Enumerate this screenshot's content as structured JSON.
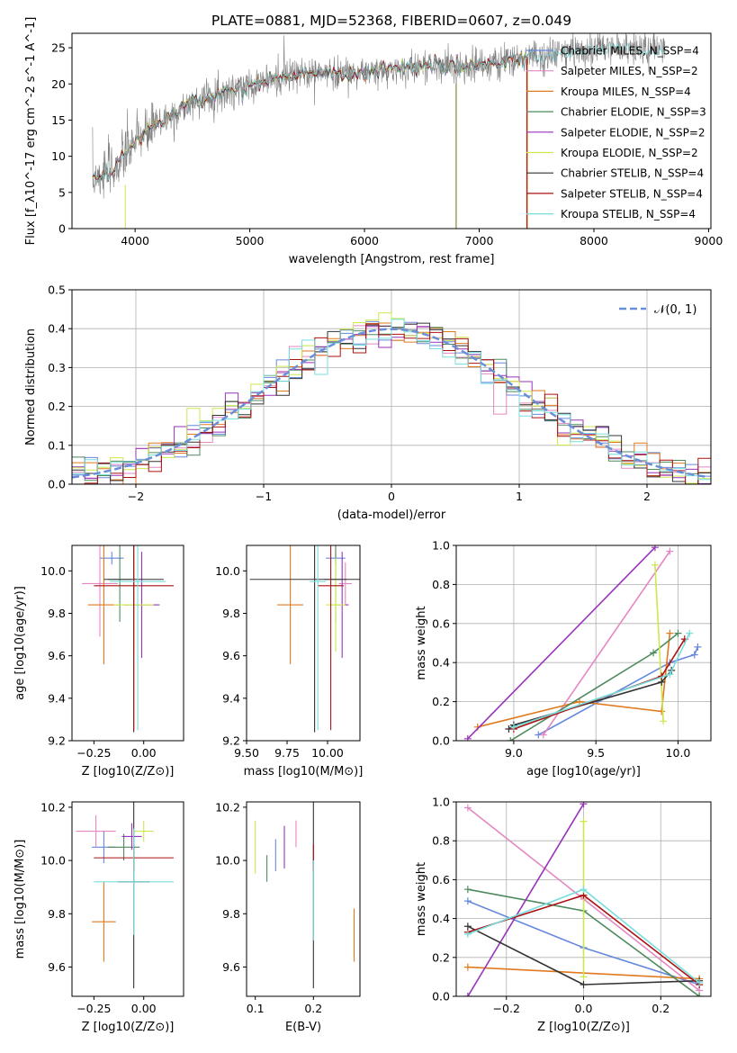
{
  "chart_data": [
    {
      "type": "line",
      "title": "PLATE=0881, MJD=52368, FIBERID=0607, z=0.049",
      "xlabel": "wavelength [Angstrom, rest frame]",
      "ylabel": "Flux [f_λ10^-17 erg cm^-2 s^-1 A^-1]",
      "xlim": [
        3450,
        9020
      ],
      "ylim": [
        0,
        27
      ],
      "xticks": [
        "4000",
        "5000",
        "6000",
        "7000",
        "8000",
        "9000"
      ],
      "yticks": [
        "0",
        "5",
        "10",
        "15",
        "20",
        "25"
      ],
      "legend_placement": "top-right",
      "legend": [
        {
          "label": "Chabrier MILES, N_SSP=4",
          "color": "#6688dd"
        },
        {
          "label": "Salpeter MILES, N_SSP=2",
          "color": "#e587c2"
        },
        {
          "label": "Kroupa MILES, N_SSP=4",
          "color": "#e07a1f"
        },
        {
          "label": "Chabrier ELODIE, N_SSP=3",
          "color": "#4e8a5e"
        },
        {
          "label": "Salpeter ELODIE, N_SSP=2",
          "color": "#9933bb"
        },
        {
          "label": "Kroupa ELODIE, N_SSP=2",
          "color": "#cce84d"
        },
        {
          "label": "Chabrier STELIB, N_SSP=4",
          "color": "#333333"
        },
        {
          "label": "Salpeter STELIB, N_SSP=4",
          "color": "#aa1111"
        },
        {
          "label": "Kroupa STELIB, N_SSP=4",
          "color": "#77dddd"
        }
      ],
      "data_color": "#808080",
      "continuum_x": [
        3630,
        3800,
        4000,
        4200,
        4500,
        5000,
        5500,
        6000,
        6500,
        7000,
        7400,
        7800,
        8200,
        8600
      ],
      "continuum_y": [
        7,
        8,
        12,
        14.5,
        17.5,
        20,
        21.5,
        21.5,
        22.5,
        22.5,
        23.5,
        24.5,
        25,
        24.5
      ]
    },
    {
      "type": "line",
      "xlabel": "(data-model)/error",
      "ylabel": "Normed distribution",
      "xlim": [
        -2.5,
        2.5
      ],
      "ylim": [
        0,
        0.5
      ],
      "xticks": [
        "−2",
        "−1",
        "0",
        "1",
        "2"
      ],
      "yticks": [
        "0.0",
        "0.1",
        "0.2",
        "0.3",
        "0.4",
        "0.5"
      ],
      "grid": true,
      "legend_placement": "top-right",
      "legend": [
        {
          "label": "𝒩(0, 1)",
          "color": "#6a8fd8",
          "style": "dashed"
        }
      ],
      "bin_width": 0.1
    },
    {
      "type": "scatter",
      "xlabel": "Z [log10(Z/Z⊙)]",
      "ylabel": "age  [log10(age/yr)]",
      "xlim": [
        -0.36,
        0.2
      ],
      "ylim": [
        9.2,
        10.12
      ],
      "xticks": [
        "−0.25",
        "0.00"
      ],
      "yticks": [
        "9.2",
        "9.4",
        "9.6",
        "9.8",
        "10.0"
      ],
      "points": [
        {
          "x": -0.16,
          "y": 10.06,
          "xerr": 0.06,
          "yerr": 0.03,
          "color": "#6688dd"
        },
        {
          "x": -0.22,
          "y": 9.94,
          "xerr": 0.09,
          "yerr": 0.25,
          "color": "#e587c2"
        },
        {
          "x": -0.2,
          "y": 9.84,
          "xerr": 0.08,
          "yerr": 0.28,
          "color": "#e07a1f"
        },
        {
          "x": -0.12,
          "y": 9.96,
          "xerr": 0.06,
          "yerr": 0.2,
          "color": "#4e8a5e"
        },
        {
          "x": -0.01,
          "y": 9.84,
          "xerr": 0.09,
          "yerr": 0.25,
          "color": "#9933bb"
        },
        {
          "x": -0.05,
          "y": 9.84,
          "xerr": 0.1,
          "yerr": 0.22,
          "color": "#cce84d"
        },
        {
          "x": -0.05,
          "y": 9.96,
          "xerr": 0.15,
          "yerr": 0.72,
          "color": "#333333"
        },
        {
          "x": -0.05,
          "y": 9.93,
          "xerr": 0.2,
          "yerr": 0.68,
          "color": "#aa1111"
        },
        {
          "x": -0.03,
          "y": 9.95,
          "xerr": 0.14,
          "yerr": 0.7,
          "color": "#77dddd"
        }
      ]
    },
    {
      "type": "scatter",
      "xlabel": "mass [log10(M/M⊙)]",
      "ylabel": "",
      "xlim": [
        9.5,
        10.2
      ],
      "ylim": [
        9.2,
        10.12
      ],
      "xticks": [
        "9.50",
        "9.75",
        "10.00"
      ],
      "yticks": [
        "9.2",
        "9.4",
        "9.6",
        "9.8",
        "10.0"
      ],
      "points": [
        {
          "x": 10.05,
          "y": 10.06,
          "xerr": 0.06,
          "yerr": 0.03,
          "color": "#6688dd"
        },
        {
          "x": 10.11,
          "y": 9.94,
          "xerr": 0.04,
          "yerr": 0.1,
          "color": "#e587c2"
        },
        {
          "x": 9.77,
          "y": 9.84,
          "xerr": 0.08,
          "yerr": 0.28,
          "color": "#e07a1f"
        },
        {
          "x": 10.05,
          "y": 9.96,
          "xerr": 0.07,
          "yerr": 0.2,
          "color": "#4e8a5e"
        },
        {
          "x": 10.09,
          "y": 9.84,
          "xerr": 0.04,
          "yerr": 0.25,
          "color": "#9933bb"
        },
        {
          "x": 10.05,
          "y": 9.84,
          "xerr": 0.06,
          "yerr": 0.22,
          "color": "#cce84d"
        },
        {
          "x": 9.92,
          "y": 9.96,
          "xerr": 0.4,
          "yerr": 0.72,
          "color": "#333333"
        },
        {
          "x": 10.02,
          "y": 9.93,
          "xerr": 0.08,
          "yerr": 0.68,
          "color": "#aa1111"
        },
        {
          "x": 9.94,
          "y": 9.95,
          "xerr": 0.05,
          "yerr": 0.7,
          "color": "#77dddd"
        }
      ]
    },
    {
      "type": "line",
      "xlabel": "age  [log10(age/yr)]",
      "ylabel": "mass weight",
      "xlim": [
        8.65,
        10.2
      ],
      "ylim": [
        0,
        1.0
      ],
      "xticks": [
        "9.0",
        "9.5",
        "10.0"
      ],
      "yticks": [
        "0.0",
        "0.2",
        "0.4",
        "0.6",
        "0.8",
        "1.0"
      ],
      "grid": true,
      "series": [
        {
          "color": "#6688dd",
          "x": [
            9.15,
            9.95,
            10.1,
            10.12
          ],
          "y": [
            0.03,
            0.4,
            0.44,
            0.48
          ]
        },
        {
          "color": "#e587c2",
          "x": [
            9.18,
            9.95
          ],
          "y": [
            0.03,
            0.97
          ]
        },
        {
          "color": "#e07a1f",
          "x": [
            8.78,
            9.4,
            9.9,
            9.95
          ],
          "y": [
            0.07,
            0.2,
            0.15,
            0.55
          ]
        },
        {
          "color": "#4e8a5e",
          "x": [
            8.98,
            9.85,
            10.0
          ],
          "y": [
            0.0,
            0.45,
            0.55
          ]
        },
        {
          "color": "#9933bb",
          "x": [
            8.72,
            9.86
          ],
          "y": [
            0.01,
            0.99
          ]
        },
        {
          "color": "#cce84d",
          "x": [
            9.86,
            9.91
          ],
          "y": [
            0.9,
            0.1
          ]
        },
        {
          "color": "#333333",
          "x": [
            8.97,
            9.0,
            9.9,
            9.96
          ],
          "y": [
            0.06,
            0.08,
            0.3,
            0.36
          ]
        },
        {
          "color": "#aa1111",
          "x": [
            9.0,
            9.9,
            10.04
          ],
          "y": [
            0.06,
            0.33,
            0.52
          ]
        },
        {
          "color": "#77dddd",
          "x": [
            9.0,
            9.95,
            10.07
          ],
          "y": [
            0.07,
            0.34,
            0.55
          ]
        }
      ]
    },
    {
      "type": "scatter",
      "xlabel": "Z [log10(Z/Z⊙)]",
      "ylabel": "mass [log10(M/M⊙)]",
      "xlim": [
        -0.36,
        0.2
      ],
      "ylim": [
        9.49,
        10.22
      ],
      "xticks": [
        "−0.25",
        "0.00"
      ],
      "yticks": [
        "9.6",
        "9.8",
        "10.0",
        "10.2"
      ],
      "points": [
        {
          "x": -0.2,
          "y": 10.05,
          "xerr": 0.06,
          "yerr": 0.06,
          "color": "#6688dd"
        },
        {
          "x": -0.24,
          "y": 10.11,
          "xerr": 0.1,
          "yerr": 0.06,
          "color": "#e587c2"
        },
        {
          "x": -0.2,
          "y": 9.77,
          "xerr": 0.06,
          "yerr": 0.15,
          "color": "#e07a1f"
        },
        {
          "x": -0.1,
          "y": 10.05,
          "xerr": 0.08,
          "yerr": 0.05,
          "color": "#4e8a5e"
        },
        {
          "x": -0.06,
          "y": 10.09,
          "xerr": 0.05,
          "yerr": 0.05,
          "color": "#9933bb"
        },
        {
          "x": 0.0,
          "y": 10.11,
          "xerr": 0.05,
          "yerr": 0.04,
          "color": "#cce84d"
        },
        {
          "x": -0.05,
          "y": 9.92,
          "xerr": 0.08,
          "yerr": 0.4,
          "color": "#333333"
        },
        {
          "x": -0.05,
          "y": 10.01,
          "xerr": 0.2,
          "yerr": 0.05,
          "color": "#aa1111"
        },
        {
          "x": -0.05,
          "y": 9.92,
          "xerr": 0.2,
          "yerr": 0.2,
          "color": "#77dddd"
        }
      ]
    },
    {
      "type": "scatter",
      "xlabel": "E(B-V)",
      "ylabel": "",
      "xlim": [
        0.085,
        0.28
      ],
      "ylim": [
        9.49,
        10.22
      ],
      "xticks": [
        "0.1",
        "0.2"
      ],
      "yticks": [
        "9.6",
        "9.8",
        "10.0",
        "10.2"
      ],
      "points": [
        {
          "x": 0.1,
          "y": 10.05,
          "yerr": 0.1,
          "color": "#cce84d"
        },
        {
          "x": 0.12,
          "y": 9.97,
          "yerr": 0.05,
          "color": "#4e8a5e"
        },
        {
          "x": 0.135,
          "y": 10.02,
          "yerr": 0.06,
          "color": "#6688dd"
        },
        {
          "x": 0.15,
          "y": 10.05,
          "yerr": 0.08,
          "color": "#9933bb"
        },
        {
          "x": 0.17,
          "y": 10.1,
          "yerr": 0.05,
          "color": "#e587c2"
        },
        {
          "x": 0.2,
          "y": 9.92,
          "yerr": 0.4,
          "color": "#333333"
        },
        {
          "x": 0.2,
          "y": 10.01,
          "yerr": 0.05,
          "color": "#aa1111"
        },
        {
          "x": 0.2,
          "y": 9.85,
          "yerr": 0.15,
          "color": "#77dddd"
        },
        {
          "x": 0.27,
          "y": 9.72,
          "yerr": 0.1,
          "color": "#e07a1f"
        }
      ]
    },
    {
      "type": "line",
      "xlabel": "Z [log10(Z/Z⊙)]",
      "ylabel": "mass weight",
      "xlim": [
        -0.33,
        0.33
      ],
      "ylim": [
        0,
        1.0
      ],
      "xticks": [
        "−0.2",
        "0.0",
        "0.2"
      ],
      "yticks": [
        "0.0",
        "0.2",
        "0.4",
        "0.6",
        "0.8",
        "1.0"
      ],
      "grid": true,
      "series": [
        {
          "color": "#6688dd",
          "x": [
            -0.3,
            0.0,
            0.3
          ],
          "y": [
            0.49,
            0.25,
            0.06
          ]
        },
        {
          "color": "#e587c2",
          "x": [
            -0.3,
            0.0,
            0.3
          ],
          "y": [
            0.97,
            0.5,
            0.03
          ]
        },
        {
          "color": "#e07a1f",
          "x": [
            -0.3,
            0.3
          ],
          "y": [
            0.15,
            0.09
          ]
        },
        {
          "color": "#4e8a5e",
          "x": [
            -0.3,
            0.0,
            0.3
          ],
          "y": [
            0.55,
            0.44,
            0.0
          ]
        },
        {
          "color": "#9933bb",
          "x": [
            -0.3,
            0.0
          ],
          "y": [
            0.0,
            0.99
          ]
        },
        {
          "color": "#cce84d",
          "x": [
            0.0,
            0.0
          ],
          "y": [
            0.9,
            0.1
          ]
        },
        {
          "color": "#333333",
          "x": [
            -0.3,
            0.0,
            0.3
          ],
          "y": [
            0.36,
            0.06,
            0.08
          ]
        },
        {
          "color": "#aa1111",
          "x": [
            -0.3,
            0.0,
            0.3
          ],
          "y": [
            0.33,
            0.52,
            0.06
          ]
        },
        {
          "color": "#77dddd",
          "x": [
            -0.3,
            0.0,
            0.3
          ],
          "y": [
            0.32,
            0.55,
            0.07
          ]
        }
      ]
    }
  ]
}
